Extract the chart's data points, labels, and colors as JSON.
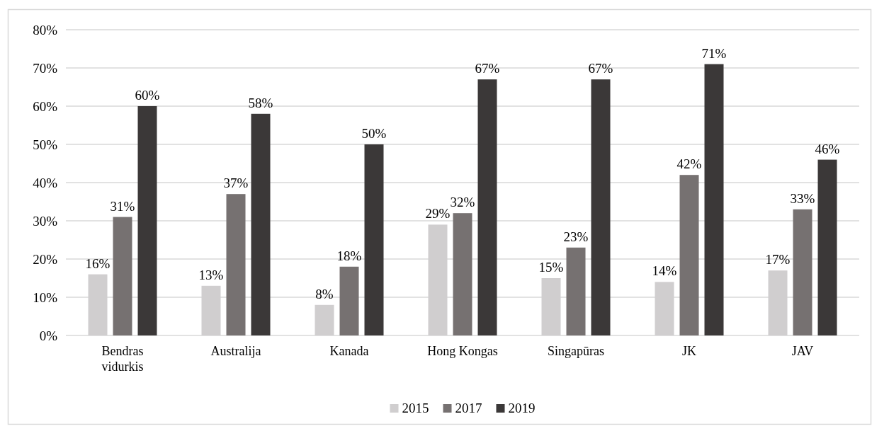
{
  "chart_data": {
    "type": "bar",
    "categories": [
      "Bendras vidurkis",
      "Australija",
      "Kanada",
      "Hong Kongas",
      "Singapūras",
      "JK",
      "JAV"
    ],
    "series": [
      {
        "name": "2015",
        "color": "#d0cecf",
        "values": [
          16,
          13,
          8,
          29,
          15,
          14,
          17
        ],
        "value_labels": [
          "16%",
          "13%",
          "8%",
          "29%",
          "15%",
          "14%",
          "17%"
        ]
      },
      {
        "name": "2017",
        "color": "#767171",
        "values": [
          31,
          37,
          18,
          32,
          23,
          42,
          33
        ],
        "value_labels": [
          "31%",
          "37%",
          "18%",
          "32%",
          "23%",
          "42%",
          "33%"
        ]
      },
      {
        "name": "2019",
        "color": "#3b3838",
        "values": [
          60,
          58,
          50,
          67,
          67,
          71,
          46
        ],
        "value_labels": [
          "60%",
          "58%",
          "50%",
          "67%",
          "67%",
          "71%",
          "46%"
        ]
      }
    ],
    "ylim": [
      0,
      80
    ],
    "yticks": [
      {
        "value": 0,
        "label": "0%"
      },
      {
        "value": 10,
        "label": "10%"
      },
      {
        "value": 20,
        "label": "20%"
      },
      {
        "value": 30,
        "label": "30%"
      },
      {
        "value": 40,
        "label": "40%"
      },
      {
        "value": 50,
        "label": "50%"
      },
      {
        "value": 60,
        "label": "60%"
      },
      {
        "value": 70,
        "label": "70%"
      },
      {
        "value": 80,
        "label": "80%"
      }
    ],
    "grid": "y",
    "legend": "bottom"
  }
}
